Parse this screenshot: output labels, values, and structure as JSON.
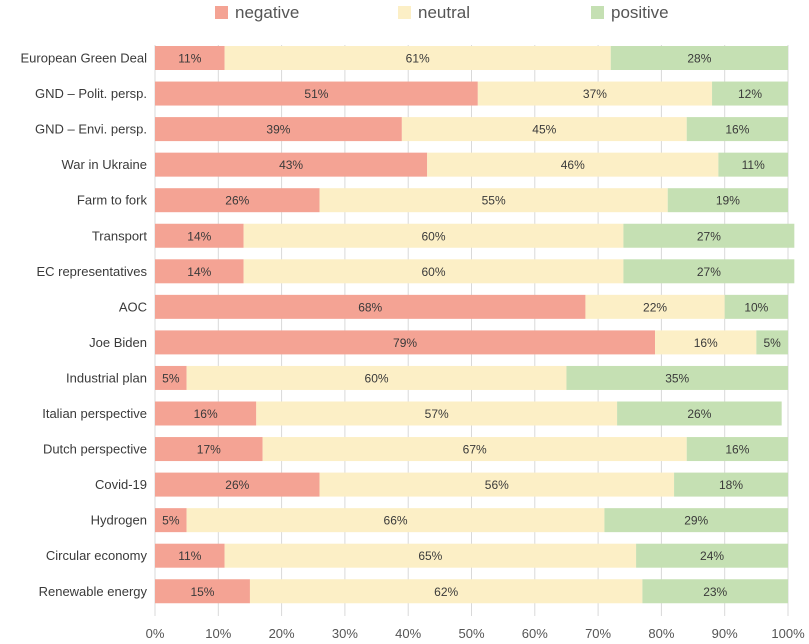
{
  "chart_data": {
    "type": "bar",
    "orientation": "horizontal",
    "stacked": "percent",
    "categories": [
      "European Green Deal",
      "GND – Polit. persp.",
      "GND – Envi. persp.",
      "War in Ukraine",
      "Farm to fork",
      "Transport",
      "EC representatives",
      "AOC",
      "Joe Biden",
      "Industrial plan",
      "Italian perspective",
      "Dutch perspective",
      "Covid-19",
      "Hydrogen",
      "Circular economy",
      "Renewable energy"
    ],
    "series": [
      {
        "name": "negative",
        "color": "#f4a394",
        "values": [
          11,
          51,
          39,
          43,
          26,
          14,
          14,
          68,
          79,
          5,
          16,
          17,
          26,
          5,
          11,
          15
        ]
      },
      {
        "name": "neutral",
        "color": "#fcefc6",
        "values": [
          61,
          37,
          45,
          46,
          55,
          60,
          60,
          22,
          16,
          60,
          57,
          67,
          56,
          66,
          65,
          62
        ]
      },
      {
        "name": "positive",
        "color": "#c5e0b3",
        "values": [
          28,
          12,
          16,
          11,
          19,
          27,
          27,
          10,
          5,
          35,
          26,
          16,
          18,
          29,
          24,
          23
        ]
      }
    ],
    "xlim": [
      0,
      100
    ],
    "x_ticks": [
      "0%",
      "10%",
      "20%",
      "30%",
      "40%",
      "50%",
      "60%",
      "70%",
      "80%",
      "90%",
      "100%"
    ],
    "value_suffix": "%",
    "legend_position": "top",
    "grid": true,
    "title": "",
    "xlabel": "",
    "ylabel": ""
  }
}
